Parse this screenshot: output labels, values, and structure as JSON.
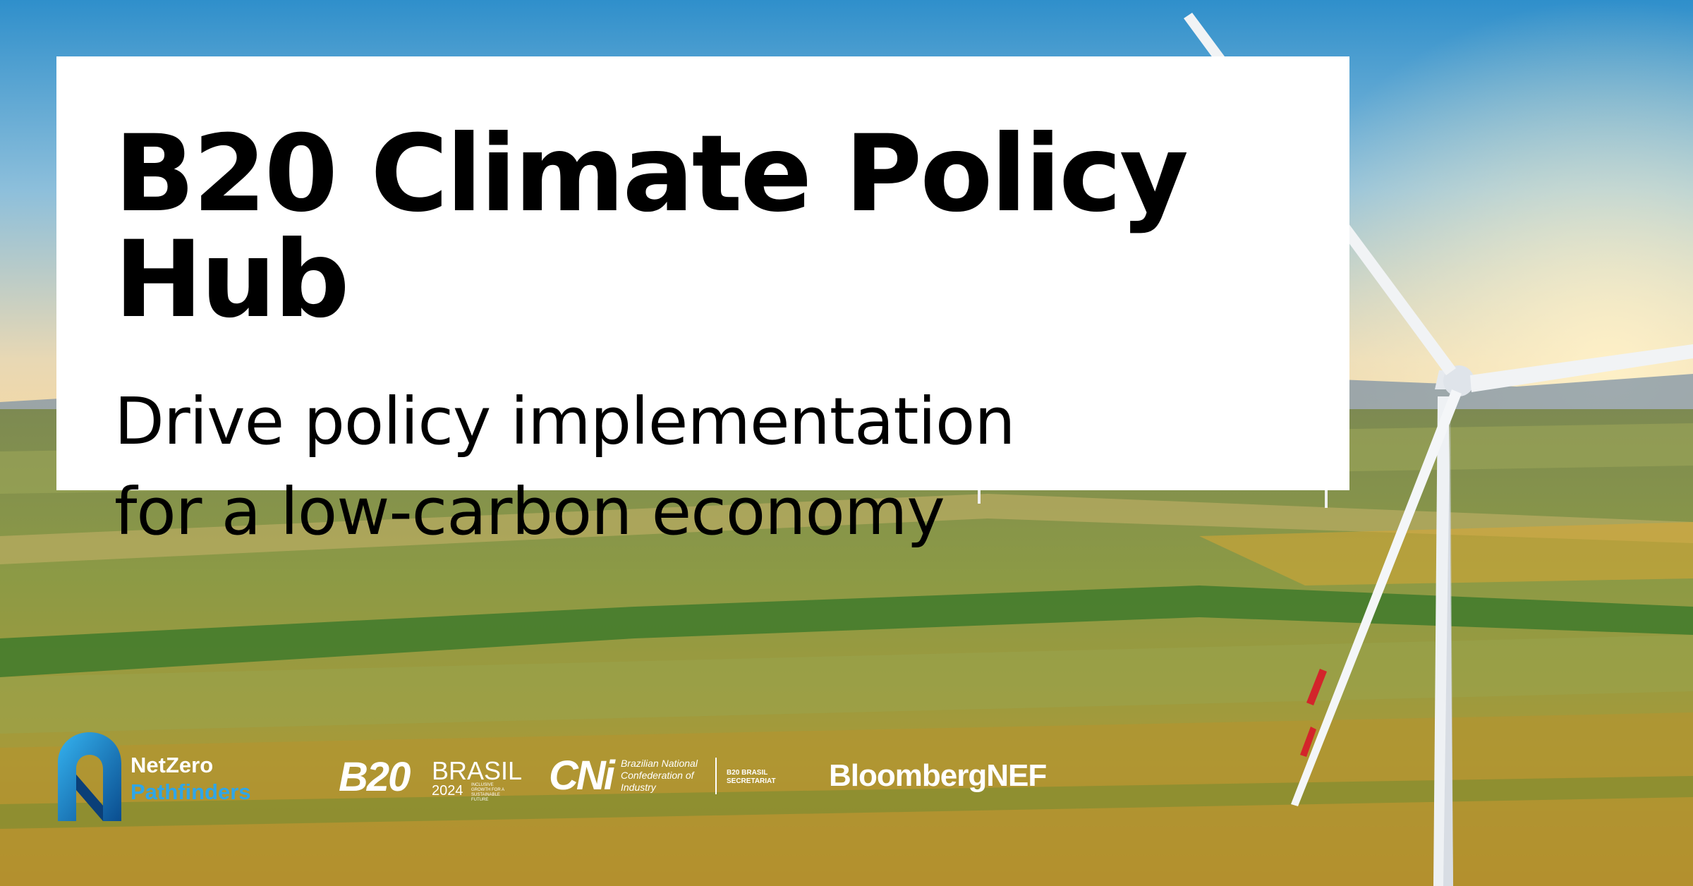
{
  "banner": {
    "title": "B20 Climate Policy Hub",
    "subtitle_line1": "Drive policy implementation",
    "subtitle_line2": "for a low-carbon economy"
  },
  "logos": {
    "netzero": {
      "line1": "NetZero",
      "line2": "Pathfinders"
    },
    "b20": {
      "mark": "B20",
      "name": "BRASIL",
      "year": "2024",
      "tagline": "INCLUSIVE GROWTH FOR A SUSTAINABLE FUTURE"
    },
    "cni": {
      "mark": "CNi",
      "description": "Brazilian National Confederation of Industry",
      "secretariat": "B20 BRASIL SECRETARIAT"
    },
    "bnef": {
      "name": "BloombergNEF"
    }
  },
  "colors": {
    "sky_top": "#2f8fcb",
    "horizon_glow": "#f3d9a6",
    "field_green": "#5f8a32",
    "field_gold": "#c9a63f",
    "card_background": "#ffffff",
    "netzero_accent": "#2ea6e8"
  }
}
